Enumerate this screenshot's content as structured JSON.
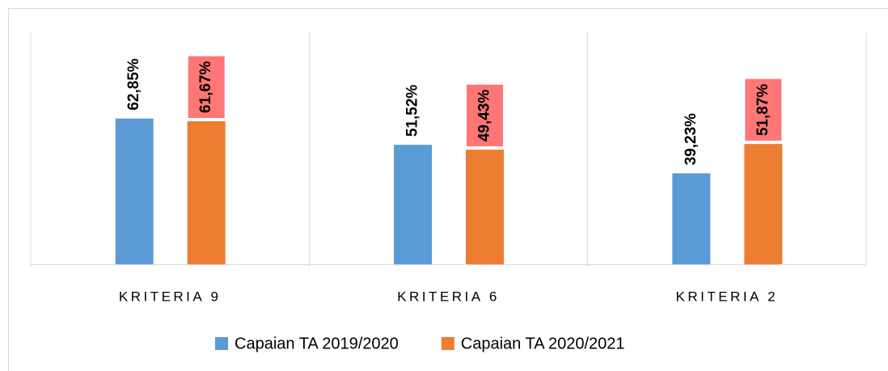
{
  "chart_data": {
    "type": "bar",
    "categories": [
      "KRITERIA 9",
      "KRITERIA 6",
      "KRITERIA 2"
    ],
    "series": [
      {
        "name": "Capaian TA 2019/2020",
        "color": "#5b9bd5",
        "values": [
          62.85,
          51.52,
          39.23
        ],
        "value_labels": [
          "62,85%",
          "51,52%",
          "39,23%"
        ]
      },
      {
        "name": "Capaian TA 2020/2021",
        "color": "#ed7d31",
        "values": [
          61.67,
          49.43,
          51.87
        ],
        "value_labels": [
          "61,67%",
          "49,43%",
          "51,87%"
        ],
        "label_background": "#ff7676"
      }
    ],
    "ylim": [
      0,
      100
    ],
    "legend": "bottom"
  }
}
